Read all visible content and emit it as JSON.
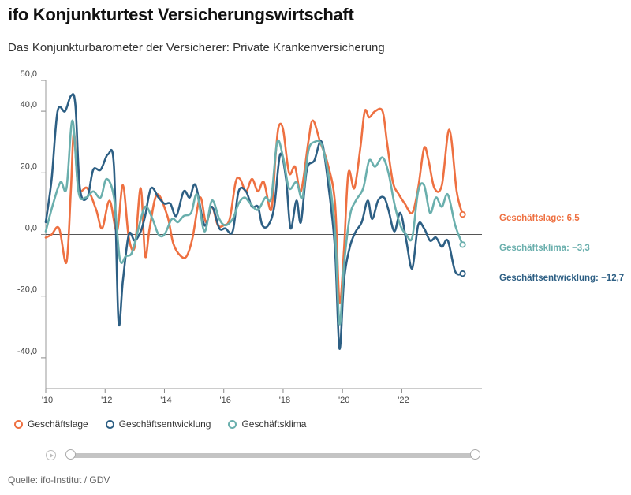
{
  "header": {
    "title": "ifo Konjunkturtest Versicherungswirtschaft",
    "subtitle": "Das Konjunkturbarometer der Versicherer: Private Krankenversicherung"
  },
  "source": "Quelle: ifo-Institut / GDV",
  "chart_data": {
    "type": "line",
    "title": "ifo Konjunkturtest Versicherungswirtschaft",
    "subtitle": "Das Konjunkturbarometer der Versicherer: Private Krankenversicherung",
    "ylim": [
      -50,
      50
    ],
    "xlim": [
      2010,
      2024.7
    ],
    "y_ticks": [
      "50,0",
      "40,0",
      "20,0",
      "0,0",
      "-20,0",
      "-40,0"
    ],
    "y_tick_values": [
      50,
      40,
      20,
      0,
      -20,
      -40
    ],
    "x_ticks": [
      "'10",
      "'12",
      "'14",
      "'16",
      "'18",
      "'20",
      "'22"
    ],
    "x_tick_values": [
      2010,
      2012,
      2014,
      2016,
      2018,
      2020,
      2022
    ],
    "grid": false,
    "legend_position": "bottom-left",
    "series": [
      {
        "name": "Geschäftslage",
        "color": "#ee7041",
        "end_label": "Geschäftslage: 6,5",
        "points": [
          [
            2010.0,
            -1
          ],
          [
            2010.2,
            0
          ],
          [
            2010.45,
            2
          ],
          [
            2010.7,
            -9
          ],
          [
            2010.85,
            15
          ],
          [
            2010.95,
            33
          ],
          [
            2011.1,
            15
          ],
          [
            2011.4,
            15
          ],
          [
            2011.7,
            8
          ],
          [
            2011.9,
            2
          ],
          [
            2012.15,
            11
          ],
          [
            2012.4,
            1
          ],
          [
            2012.6,
            16
          ],
          [
            2012.8,
            -1
          ],
          [
            2013.0,
            -4
          ],
          [
            2013.2,
            15
          ],
          [
            2013.35,
            -7
          ],
          [
            2013.5,
            2
          ],
          [
            2013.75,
            13
          ],
          [
            2014.1,
            6
          ],
          [
            2014.3,
            -3
          ],
          [
            2014.55,
            -7
          ],
          [
            2014.75,
            -7
          ],
          [
            2014.95,
            -1
          ],
          [
            2015.2,
            12
          ],
          [
            2015.4,
            4
          ],
          [
            2015.6,
            9
          ],
          [
            2015.8,
            3
          ],
          [
            2016.0,
            3
          ],
          [
            2016.2,
            5
          ],
          [
            2016.4,
            17
          ],
          [
            2016.55,
            18
          ],
          [
            2016.75,
            14
          ],
          [
            2016.95,
            18
          ],
          [
            2017.15,
            14
          ],
          [
            2017.35,
            17
          ],
          [
            2017.6,
            8
          ],
          [
            2017.75,
            26
          ],
          [
            2017.85,
            35
          ],
          [
            2018.0,
            34
          ],
          [
            2018.2,
            20
          ],
          [
            2018.4,
            22
          ],
          [
            2018.6,
            14
          ],
          [
            2018.85,
            30
          ],
          [
            2019.0,
            37
          ],
          [
            2019.25,
            30
          ],
          [
            2019.5,
            23
          ],
          [
            2019.75,
            10
          ],
          [
            2019.9,
            -22
          ],
          [
            2020.05,
            -5
          ],
          [
            2020.2,
            20
          ],
          [
            2020.4,
            15
          ],
          [
            2020.6,
            28
          ],
          [
            2020.75,
            40
          ],
          [
            2020.9,
            38
          ],
          [
            2021.1,
            40
          ],
          [
            2021.35,
            40
          ],
          [
            2021.5,
            30
          ],
          [
            2021.7,
            17
          ],
          [
            2021.9,
            13
          ],
          [
            2022.1,
            10
          ],
          [
            2022.35,
            7
          ],
          [
            2022.55,
            15
          ],
          [
            2022.75,
            28
          ],
          [
            2022.9,
            24
          ],
          [
            2023.1,
            15
          ],
          [
            2023.35,
            16
          ],
          [
            2023.6,
            34
          ],
          [
            2023.85,
            14
          ],
          [
            2024.05,
            6.5
          ]
        ]
      },
      {
        "name": "Geschäftsentwicklung",
        "color": "#2d5f84",
        "end_label": "Geschäftsentwicklung: −12,7",
        "points": [
          [
            2010.0,
            4
          ],
          [
            2010.2,
            18
          ],
          [
            2010.4,
            40
          ],
          [
            2010.65,
            40
          ],
          [
            2010.85,
            45
          ],
          [
            2011.0,
            42
          ],
          [
            2011.15,
            15
          ],
          [
            2011.4,
            12
          ],
          [
            2011.6,
            21
          ],
          [
            2011.85,
            21
          ],
          [
            2012.1,
            26
          ],
          [
            2012.3,
            22
          ],
          [
            2012.45,
            -28
          ],
          [
            2012.6,
            -15
          ],
          [
            2012.8,
            0
          ],
          [
            2013.0,
            -2
          ],
          [
            2013.2,
            1
          ],
          [
            2013.35,
            6
          ],
          [
            2013.55,
            15
          ],
          [
            2013.8,
            12
          ],
          [
            2014.0,
            10
          ],
          [
            2014.2,
            10
          ],
          [
            2014.4,
            6
          ],
          [
            2014.65,
            14
          ],
          [
            2014.85,
            12
          ],
          [
            2015.05,
            16
          ],
          [
            2015.35,
            3
          ],
          [
            2015.6,
            9
          ],
          [
            2015.85,
            2
          ],
          [
            2016.05,
            2
          ],
          [
            2016.3,
            1
          ],
          [
            2016.5,
            14
          ],
          [
            2016.75,
            14
          ],
          [
            2016.95,
            9
          ],
          [
            2017.15,
            9
          ],
          [
            2017.3,
            3
          ],
          [
            2017.5,
            3
          ],
          [
            2017.7,
            9
          ],
          [
            2017.9,
            26
          ],
          [
            2018.1,
            18
          ],
          [
            2018.25,
            2
          ],
          [
            2018.45,
            11
          ],
          [
            2018.6,
            4
          ],
          [
            2018.8,
            21
          ],
          [
            2019.05,
            24
          ],
          [
            2019.3,
            30
          ],
          [
            2019.55,
            14
          ],
          [
            2019.75,
            -5
          ],
          [
            2019.9,
            -37
          ],
          [
            2020.05,
            -15
          ],
          [
            2020.25,
            -4
          ],
          [
            2020.45,
            1
          ],
          [
            2020.65,
            4
          ],
          [
            2020.85,
            11
          ],
          [
            2021.0,
            5
          ],
          [
            2021.2,
            11
          ],
          [
            2021.4,
            12
          ],
          [
            2021.55,
            8
          ],
          [
            2021.75,
            1
          ],
          [
            2021.95,
            7
          ],
          [
            2022.15,
            -2
          ],
          [
            2022.35,
            -11
          ],
          [
            2022.55,
            3
          ],
          [
            2022.75,
            2
          ],
          [
            2022.95,
            -2
          ],
          [
            2023.15,
            -1
          ],
          [
            2023.35,
            -4
          ],
          [
            2023.55,
            -2
          ],
          [
            2023.8,
            -12
          ],
          [
            2024.05,
            -12.7
          ]
        ]
      },
      {
        "name": "Geschäftsklima",
        "color": "#6aafad",
        "end_label": "Geschäftsklima: −3,3",
        "points": [
          [
            2010.0,
            1
          ],
          [
            2010.25,
            10
          ],
          [
            2010.5,
            17
          ],
          [
            2010.7,
            15
          ],
          [
            2010.9,
            37
          ],
          [
            2011.1,
            14
          ],
          [
            2011.35,
            12
          ],
          [
            2011.6,
            14
          ],
          [
            2011.85,
            12
          ],
          [
            2012.05,
            18
          ],
          [
            2012.3,
            12
          ],
          [
            2012.5,
            -8
          ],
          [
            2012.7,
            -7
          ],
          [
            2012.9,
            -6
          ],
          [
            2013.1,
            1
          ],
          [
            2013.35,
            9
          ],
          [
            2013.6,
            5
          ],
          [
            2013.8,
            0
          ],
          [
            2014.0,
            0
          ],
          [
            2014.25,
            5
          ],
          [
            2014.45,
            4
          ],
          [
            2014.65,
            6
          ],
          [
            2014.9,
            7
          ],
          [
            2015.1,
            13
          ],
          [
            2015.35,
            1
          ],
          [
            2015.6,
            11
          ],
          [
            2015.85,
            5
          ],
          [
            2016.05,
            3
          ],
          [
            2016.3,
            5
          ],
          [
            2016.5,
            10
          ],
          [
            2016.7,
            12
          ],
          [
            2016.9,
            10
          ],
          [
            2017.15,
            8
          ],
          [
            2017.4,
            12
          ],
          [
            2017.6,
            12
          ],
          [
            2017.8,
            30
          ],
          [
            2018.0,
            25
          ],
          [
            2018.2,
            15
          ],
          [
            2018.45,
            17
          ],
          [
            2018.65,
            12
          ],
          [
            2018.85,
            27
          ],
          [
            2019.05,
            30
          ],
          [
            2019.3,
            29
          ],
          [
            2019.55,
            18
          ],
          [
            2019.75,
            1
          ],
          [
            2019.9,
            -29
          ],
          [
            2020.05,
            -10
          ],
          [
            2020.25,
            6
          ],
          [
            2020.45,
            11
          ],
          [
            2020.7,
            15
          ],
          [
            2020.9,
            24
          ],
          [
            2021.1,
            22
          ],
          [
            2021.35,
            25
          ],
          [
            2021.55,
            20
          ],
          [
            2021.75,
            10
          ],
          [
            2021.95,
            3
          ],
          [
            2022.15,
            0
          ],
          [
            2022.35,
            -1
          ],
          [
            2022.55,
            14
          ],
          [
            2022.75,
            16
          ],
          [
            2022.95,
            7
          ],
          [
            2023.15,
            12
          ],
          [
            2023.35,
            9
          ],
          [
            2023.55,
            13
          ],
          [
            2023.8,
            3
          ],
          [
            2024.05,
            -3.3
          ]
        ]
      }
    ]
  }
}
